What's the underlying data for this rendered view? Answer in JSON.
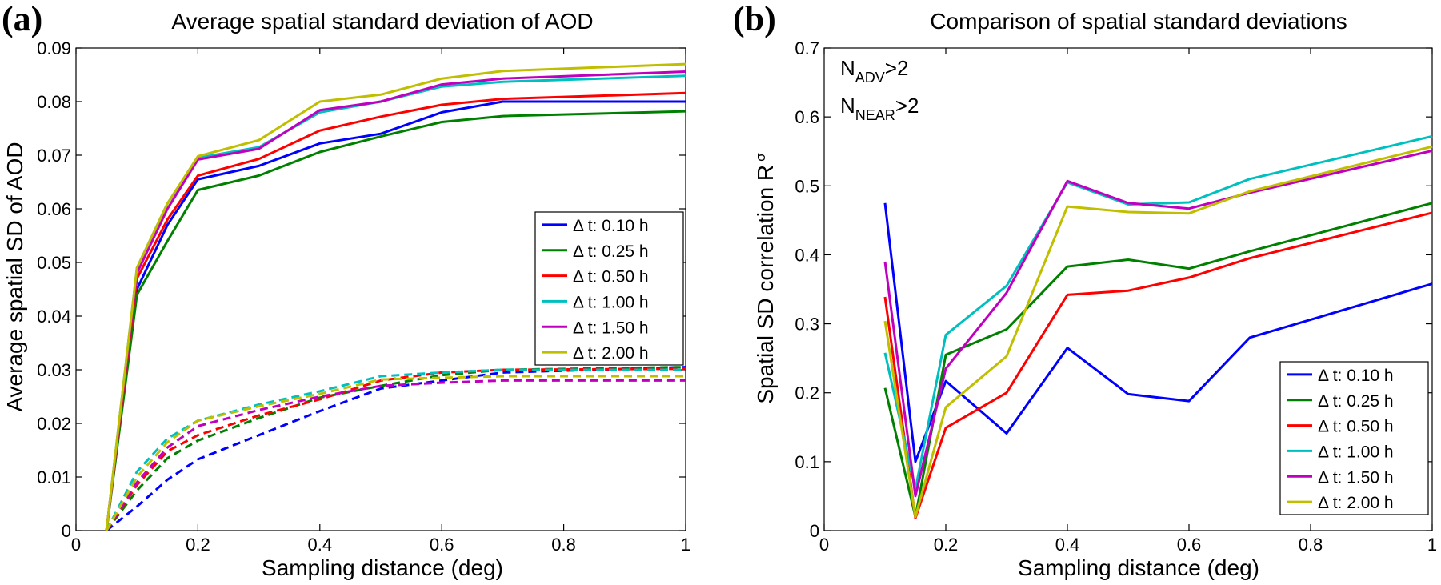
{
  "chart_data": [
    {
      "type": "line",
      "panel_label": "(a)",
      "title": "Average spatial standard deviation of AOD",
      "xlabel": "Sampling distance (deg)",
      "ylabel": "Average spatial SD of AOD",
      "xlim": [
        0,
        1
      ],
      "ylim": [
        0,
        0.09
      ],
      "xticks": [
        0,
        0.2,
        0.4,
        0.6,
        0.8,
        1
      ],
      "xtick_labels": [
        "0",
        "0.2",
        "0.4",
        "0.6",
        "0.8",
        "1"
      ],
      "yticks": [
        0,
        0.01,
        0.02,
        0.03,
        0.04,
        0.05,
        0.06,
        0.07,
        0.08,
        0.09
      ],
      "ytick_labels": [
        "0",
        "0.01",
        "0.02",
        "0.03",
        "0.04",
        "0.05",
        "0.06",
        "0.07",
        "0.08",
        "0.09"
      ],
      "legend_position": "right-middle",
      "x": [
        0.05,
        0.1,
        0.15,
        0.2,
        0.3,
        0.4,
        0.5,
        0.6,
        0.7,
        1.0
      ],
      "series": [
        {
          "name": "Δ t: 0.10 h",
          "color": "#0000ff",
          "style": "solid",
          "values": [
            0,
            0.045,
            0.057,
            0.0655,
            0.068,
            0.0722,
            0.074,
            0.078,
            0.08,
            0.08
          ]
        },
        {
          "name": "Δ t: 0.25 h",
          "color": "#008000",
          "style": "solid",
          "values": [
            0,
            0.044,
            0.054,
            0.0635,
            0.0662,
            0.0706,
            0.0735,
            0.0762,
            0.0773,
            0.0782
          ]
        },
        {
          "name": "Δ t: 0.50 h",
          "color": "#ff0000",
          "style": "solid",
          "values": [
            0,
            0.047,
            0.058,
            0.0662,
            0.0693,
            0.0746,
            0.0772,
            0.0794,
            0.0805,
            0.0816
          ]
        },
        {
          "name": "Δ t: 1.00 h",
          "color": "#00bfbf",
          "style": "solid",
          "values": [
            0,
            0.049,
            0.061,
            0.0695,
            0.0715,
            0.078,
            0.08,
            0.0828,
            0.0837,
            0.0848
          ]
        },
        {
          "name": "Δ t: 1.50 h",
          "color": "#bf00bf",
          "style": "solid",
          "values": [
            0,
            0.048,
            0.06,
            0.0692,
            0.0712,
            0.0784,
            0.08,
            0.0832,
            0.0843,
            0.0856
          ]
        },
        {
          "name": "Δ t: 2.00 h",
          "color": "#bfbf00",
          "style": "solid",
          "values": [
            0,
            0.049,
            0.061,
            0.0698,
            0.0728,
            0.08,
            0.0813,
            0.0843,
            0.0857,
            0.087
          ]
        },
        {
          "name": "",
          "color": "#0000ff",
          "style": "dashed",
          "values": [
            0,
            0.0045,
            0.0095,
            0.0133,
            0.0178,
            0.0223,
            0.0265,
            0.028,
            0.0295,
            0.0305
          ]
        },
        {
          "name": "",
          "color": "#008000",
          "style": "dashed",
          "values": [
            0,
            0.0075,
            0.0135,
            0.0168,
            0.021,
            0.0248,
            0.027,
            0.029,
            0.03,
            0.0305
          ]
        },
        {
          "name": "",
          "color": "#ff0000",
          "style": "dashed",
          "values": [
            0,
            0.0085,
            0.0148,
            0.0178,
            0.0215,
            0.0245,
            0.028,
            0.0295,
            0.03,
            0.0302
          ]
        },
        {
          "name": "",
          "color": "#00bfbf",
          "style": "dashed",
          "values": [
            0,
            0.011,
            0.0172,
            0.0205,
            0.0235,
            0.026,
            0.0288,
            0.0295,
            0.03,
            0.03
          ]
        },
        {
          "name": "",
          "color": "#bf00bf",
          "style": "dashed",
          "values": [
            0,
            0.009,
            0.0155,
            0.0195,
            0.0225,
            0.025,
            0.027,
            0.0276,
            0.028,
            0.028
          ]
        },
        {
          "name": "",
          "color": "#bfbf00",
          "style": "dashed",
          "values": [
            0,
            0.01,
            0.0165,
            0.0205,
            0.0232,
            0.0255,
            0.0282,
            0.0285,
            0.0288,
            0.0288
          ]
        }
      ]
    },
    {
      "type": "line",
      "panel_label": "(b)",
      "title": "Comparison of spatial standard deviations",
      "xlabel": "Sampling distance (deg)",
      "ylabel_main": "Spatial SD correlation R",
      "ylabel_sub": "σ",
      "xlim": [
        0,
        1
      ],
      "ylim": [
        0,
        0.7
      ],
      "xticks": [
        0,
        0.2,
        0.4,
        0.6,
        0.8,
        1
      ],
      "xtick_labels": [
        "0",
        "0.2",
        "0.4",
        "0.6",
        "0.8",
        "1"
      ],
      "yticks": [
        0,
        0.1,
        0.2,
        0.3,
        0.4,
        0.5,
        0.6,
        0.7
      ],
      "ytick_labels": [
        "0",
        "0.1",
        "0.2",
        "0.3",
        "0.4",
        "0.5",
        "0.6",
        "0.7"
      ],
      "legend_position": "bottom-right",
      "annotations": [
        {
          "main": "N",
          "sub": "ADV",
          "suffix": ">2"
        },
        {
          "main": "N",
          "sub": "NEAR",
          "suffix": ">2"
        }
      ],
      "x": [
        0.1,
        0.15,
        0.2,
        0.3,
        0.4,
        0.5,
        0.6,
        0.7,
        1.0
      ],
      "series": [
        {
          "name": "Δ t: 0.10 h",
          "color": "#0000ff",
          "style": "solid",
          "values": [
            0.475,
            0.1,
            0.217,
            0.141,
            0.265,
            0.198,
            0.188,
            0.28,
            0.358
          ]
        },
        {
          "name": "Δ t: 0.25 h",
          "color": "#008000",
          "style": "solid",
          "values": [
            0.207,
            0.02,
            0.255,
            0.292,
            0.383,
            0.393,
            0.38,
            0.405,
            0.475
          ]
        },
        {
          "name": "Δ t: 0.50 h",
          "color": "#ff0000",
          "style": "solid",
          "values": [
            0.339,
            0.018,
            0.149,
            0.2,
            0.342,
            0.348,
            0.367,
            0.395,
            0.461
          ]
        },
        {
          "name": "Δ t: 1.00 h",
          "color": "#00bfbf",
          "style": "solid",
          "values": [
            0.258,
            0.06,
            0.284,
            0.355,
            0.505,
            0.473,
            0.476,
            0.51,
            0.572
          ]
        },
        {
          "name": "Δ t: 1.50 h",
          "color": "#bf00bf",
          "style": "solid",
          "values": [
            0.39,
            0.05,
            0.235,
            0.345,
            0.507,
            0.475,
            0.467,
            0.49,
            0.551
          ]
        },
        {
          "name": "Δ t: 2.00 h",
          "color": "#bfbf00",
          "style": "solid",
          "values": [
            0.304,
            0.02,
            0.179,
            0.253,
            0.47,
            0.462,
            0.46,
            0.492,
            0.557
          ]
        }
      ]
    }
  ]
}
